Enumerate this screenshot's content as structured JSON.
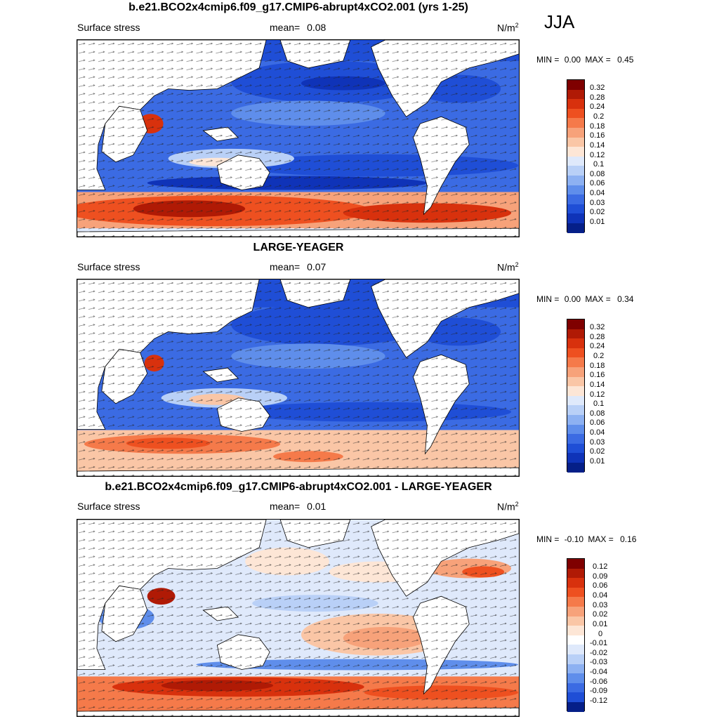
{
  "season": "JJA",
  "panels": [
    {
      "title": "b.e21.BCO2x4cmip6.f09_g17.CMIP6-abrupt4xCO2.001 (yrs 1-25)",
      "left_label": "Surface stress",
      "mean_label": "mean=",
      "mean_value": "0.08",
      "units_base": "N/m",
      "units_exp": "2",
      "min_label": "MIN =",
      "min_value": "0.00",
      "max_label": "MAX =",
      "max_value": "0.45",
      "colorbar_labels": [
        "0.32",
        "0.28",
        "0.24",
        "0.2",
        "0.18",
        "0.16",
        "0.14",
        "0.12",
        "0.1",
        "0.08",
        "0.06",
        "0.04",
        "0.03",
        "0.02",
        "0.01"
      ]
    },
    {
      "title": "LARGE-YEAGER",
      "left_label": "Surface stress",
      "mean_label": "mean=",
      "mean_value": "0.07",
      "units_base": "N/m",
      "units_exp": "2",
      "min_label": "MIN =",
      "min_value": "0.00",
      "max_label": "MAX =",
      "max_value": "0.34",
      "colorbar_labels": [
        "0.32",
        "0.28",
        "0.24",
        "0.2",
        "0.18",
        "0.16",
        "0.14",
        "0.12",
        "0.1",
        "0.08",
        "0.06",
        "0.04",
        "0.03",
        "0.02",
        "0.01"
      ]
    },
    {
      "title": "b.e21.BCO2x4cmip6.f09_g17.CMIP6-abrupt4xCO2.001 - LARGE-YEAGER",
      "left_label": "Surface stress",
      "mean_label": "mean=",
      "mean_value": "0.01",
      "units_base": "N/m",
      "units_exp": "2",
      "min_label": "MIN =",
      "min_value": "-0.10",
      "max_label": "MAX =",
      "max_value": "0.16",
      "colorbar_labels": [
        "0.12",
        "0.09",
        "0.06",
        "0.04",
        "0.03",
        "0.02",
        "0.01",
        "0",
        "-0.01",
        "-0.02",
        "-0.03",
        "-0.04",
        "-0.06",
        "-0.09",
        "-0.12"
      ]
    }
  ],
  "colors": {
    "abs_scale": [
      "#7f0000",
      "#b01a05",
      "#d8310d",
      "#ee5020",
      "#f57a4a",
      "#f7a27a",
      "#fac6a6",
      "#fde6d6",
      "#dfe9fb",
      "#b9d0f7",
      "#8db1f2",
      "#5f8eeb",
      "#3b6be3",
      "#1f4ed6",
      "#0f33b8",
      "#051f88"
    ],
    "diff_scale": [
      "#7f0000",
      "#b01a05",
      "#d8310d",
      "#ee5020",
      "#f57a4a",
      "#f7a27a",
      "#fac6a6",
      "#fde6d6",
      "#ffffff",
      "#dfe9fb",
      "#b9d0f7",
      "#8db1f2",
      "#5f8eeb",
      "#3b6be3",
      "#1f4ed6",
      "#051f88"
    ]
  }
}
